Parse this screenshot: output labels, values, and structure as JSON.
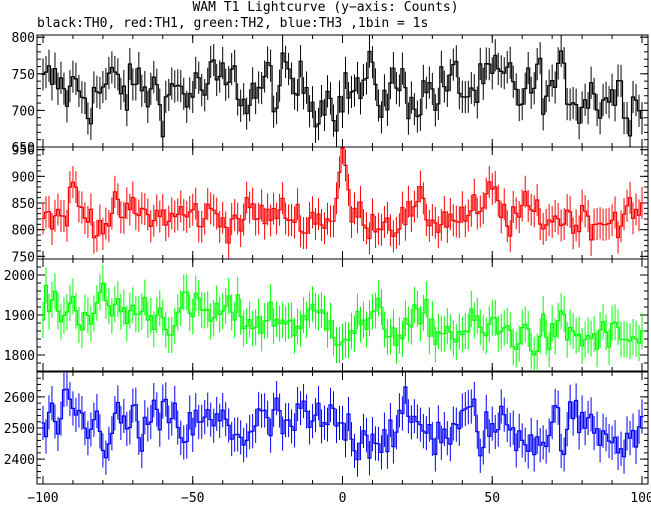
{
  "title": "WAM T1 Lightcurve (y−axis: Counts)",
  "subtitle": "black:TH0, red:TH1, green:TH2, blue:TH3 ,1bin = 1s",
  "colors": {
    "TH0": "#000000",
    "TH1": "#ff0000",
    "TH2": "#00ff00",
    "TH3": "#0000ff"
  },
  "chart_data": {
    "type": "line",
    "xlabel": "",
    "ylabel": "",
    "xlim": [
      -102,
      102
    ],
    "x_ticks": [
      -100,
      -50,
      0,
      50,
      100
    ],
    "x_tick_labels": [
      "−100",
      "−50",
      "0",
      "50",
      "100"
    ],
    "grid": false,
    "bin_seconds": 1,
    "panels": [
      {
        "name": "TH0",
        "color": "#000000",
        "ylim": [
          650,
          803
        ],
        "y_ticks": [
          650,
          700,
          750,
          800
        ],
        "y_tick_labels": [
          "650",
          "700",
          "750",
          "800"
        ],
        "mean": 728,
        "noise": 26,
        "error": 22,
        "features": []
      },
      {
        "name": "TH1",
        "color": "#ff0000",
        "ylim": [
          745,
          955
        ],
        "y_ticks": [
          750,
          800,
          850,
          900,
          950
        ],
        "y_tick_labels": [
          "750",
          "800",
          "850",
          "900",
          "950"
        ],
        "mean": 825,
        "noise": 22,
        "error": 30,
        "features": [
          {
            "x": 0,
            "peak": 945
          },
          {
            "x": -90,
            "peak": 880
          },
          {
            "x": 50,
            "peak": 870
          }
        ]
      },
      {
        "name": "TH2",
        "color": "#00ff00",
        "ylim": [
          1760,
          2040
        ],
        "y_ticks": [
          1800,
          1900,
          2000
        ],
        "y_tick_labels": [
          "1800",
          "1900",
          "2000"
        ],
        "mean": 1880,
        "noise": 32,
        "error": 45,
        "features": []
      },
      {
        "name": "TH3",
        "color": "#0000ff",
        "ylim": [
          2320,
          2680
        ],
        "y_ticks": [
          2400,
          2500,
          2600
        ],
        "y_tick_labels": [
          "2400",
          "2500",
          "2600"
        ],
        "mean": 2500,
        "noise": 55,
        "error": 55,
        "features": []
      }
    ]
  }
}
